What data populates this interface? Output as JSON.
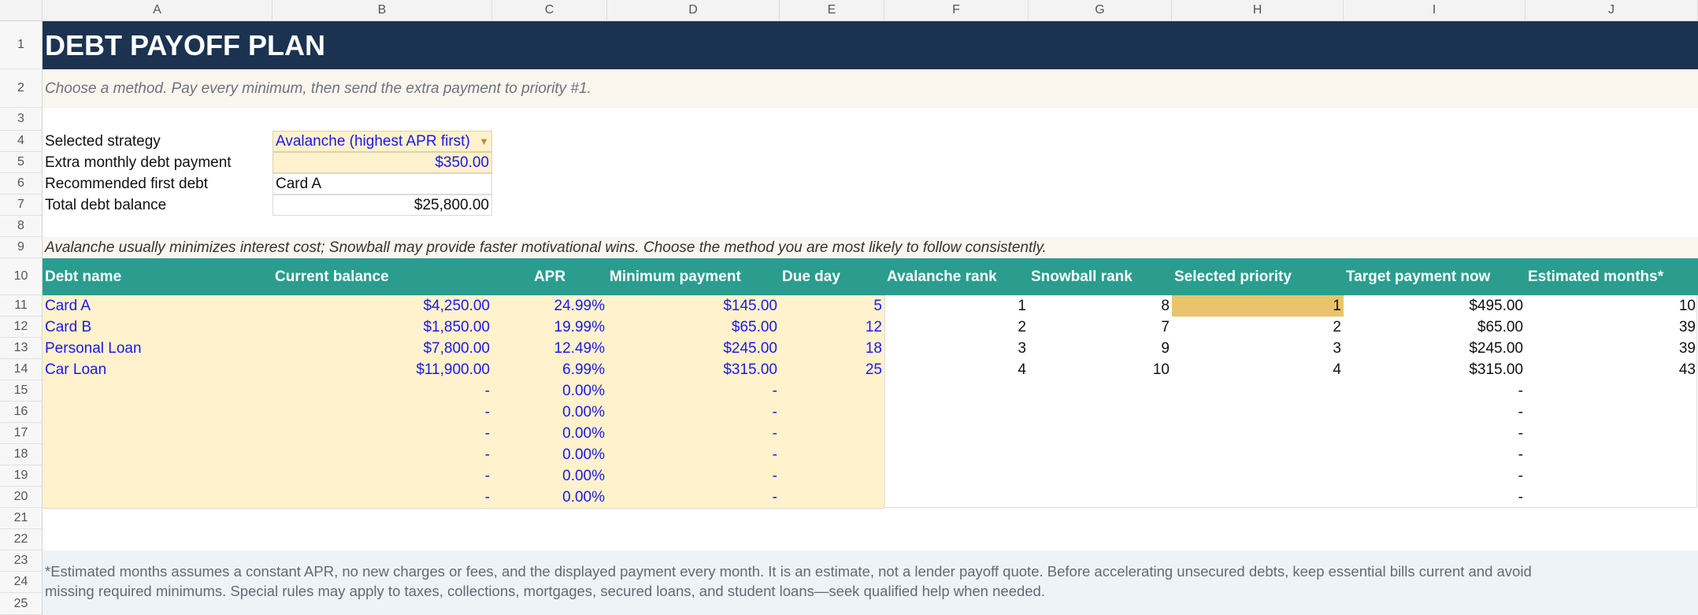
{
  "columns": [
    "A",
    "B",
    "C",
    "D",
    "E",
    "F",
    "G",
    "H",
    "I",
    "J"
  ],
  "rows": [
    "1",
    "2",
    "3",
    "4",
    "5",
    "6",
    "7",
    "8",
    "9",
    "10",
    "11",
    "12",
    "13",
    "14",
    "15",
    "16",
    "17",
    "18",
    "19",
    "20",
    "21",
    "22",
    "23",
    "24",
    "25"
  ],
  "title": "DEBT PAYOFF PLAN",
  "subtitle": "Choose a method. Pay every minimum, then send the extra payment to priority #1.",
  "settings": {
    "strategy_label": "Selected strategy",
    "strategy_value": "Avalanche (highest APR first)",
    "extra_label": "Extra monthly debt payment",
    "extra_value": "$350.00",
    "first_label": "Recommended first debt",
    "first_value": "Card A",
    "total_label": "Total debt balance",
    "total_value": "$25,800.00"
  },
  "note": "Avalanche usually minimizes interest cost; Snowball may provide faster motivational wins. Choose the method you are most likely to follow consistently.",
  "table": {
    "headers": [
      "Debt name",
      "Current balance",
      "APR",
      "Minimum payment",
      "Due day",
      "Avalanche rank",
      "Snowball rank",
      "Selected priority",
      "Target payment now",
      "Estimated months*"
    ],
    "rows": [
      [
        "Card A",
        "$4,250.00",
        "24.99%",
        "$145.00",
        "5",
        "1",
        "8",
        "1",
        "$495.00",
        "10"
      ],
      [
        "Card B",
        "$1,850.00",
        "19.99%",
        "$65.00",
        "12",
        "2",
        "7",
        "2",
        "$65.00",
        "39"
      ],
      [
        "Personal Loan",
        "$7,800.00",
        "12.49%",
        "$245.00",
        "18",
        "3",
        "9",
        "3",
        "$245.00",
        "39"
      ],
      [
        "Car Loan",
        "$11,900.00",
        "6.99%",
        "$315.00",
        "25",
        "4",
        "10",
        "4",
        "$315.00",
        "43"
      ],
      [
        "",
        "-",
        "0.00%",
        "-",
        "",
        "",
        "",
        "",
        "-",
        ""
      ],
      [
        "",
        "-",
        "0.00%",
        "-",
        "",
        "",
        "",
        "",
        "-",
        ""
      ],
      [
        "",
        "-",
        "0.00%",
        "-",
        "",
        "",
        "",
        "",
        "-",
        ""
      ],
      [
        "",
        "-",
        "0.00%",
        "-",
        "",
        "",
        "",
        "",
        "-",
        ""
      ],
      [
        "",
        "-",
        "0.00%",
        "-",
        "",
        "",
        "",
        "",
        "-",
        ""
      ],
      [
        "",
        "-",
        "0.00%",
        "-",
        "",
        "",
        "",
        "",
        "-",
        ""
      ]
    ]
  },
  "footnote_line1": "*Estimated months assumes a constant APR, no new charges or fees, and the displayed payment every month. It is an estimate, not a lender payoff quote. Before accelerating unsecured debts, keep essential bills current and avoid",
  "footnote_line2": "missing required minimums. Special rules may apply to taxes, collections, mortgages, secured loans, and student loans—seek qualified help when needed.",
  "colors": {
    "title_bar": "#1b3350",
    "table_header": "#2a9d8f",
    "input_fill": "#fff2cc",
    "priority_highlight": "#e9c46a",
    "note_band": "#faf6ee",
    "footnote_band": "#eef3f7"
  }
}
